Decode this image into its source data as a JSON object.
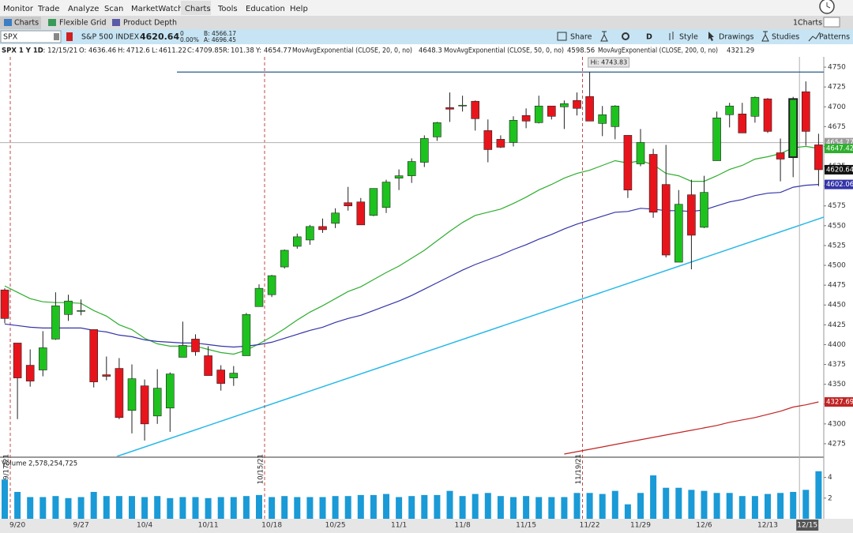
{
  "menu": [
    "Monitor",
    "Trade",
    "Analyze",
    "Scan",
    "MarketWatch",
    "Charts",
    "Tools",
    "Education",
    "Help"
  ],
  "tabs": [
    "Charts",
    "Flexible Grid",
    "Product Depth"
  ],
  "grid_name": "1Charts",
  "symbol": {
    "ticker": "SPX",
    "description": "S&P 500 INDEX",
    "change": "0",
    "change_pct": "0.00%",
    "bid": "B: 4566.17",
    "ask": "A: 4696.45"
  },
  "toolbar": [
    "Share",
    "D",
    "Style",
    "Drawings",
    "Studies",
    "Patterns"
  ],
  "chart_data": {
    "type": "candlestick",
    "title": "SPX 1 Y 1D",
    "date_readout": "D: 12/15/21",
    "ohlc_labels": [
      "O:",
      "H:",
      "L:",
      "C:"
    ],
    "range_label": "R:",
    "range": 101.38,
    "crosshair_label": "Y:",
    "crosshair_price": 4654.77,
    "categories": [
      null,
      "9/20",
      null,
      null,
      null,
      null,
      "9/27",
      null,
      null,
      null,
      null,
      "10/4",
      null,
      null,
      null,
      null,
      "10/11",
      null,
      null,
      null,
      null,
      "10/18",
      null,
      null,
      null,
      null,
      "10/25",
      null,
      null,
      null,
      null,
      "11/1",
      null,
      null,
      null,
      null,
      "11/8",
      null,
      null,
      null,
      null,
      "11/15",
      null,
      null,
      null,
      null,
      "11/22",
      null,
      null,
      null,
      "11/29",
      null,
      null,
      null,
      null,
      "12/6",
      null,
      null,
      null,
      null,
      "12/13",
      null,
      "12/15",
      null,
      null
    ],
    "open": [
      4469,
      4402,
      4374,
      4368,
      4407,
      4438,
      4442,
      4419,
      4362,
      4370,
      4317,
      4348,
      4310,
      4320,
      4384,
      4407,
      4386,
      4368,
      4358,
      4386,
      4448,
      4463,
      4498,
      4524,
      4532,
      4549,
      4553,
      4579,
      4580,
      4563,
      4573,
      4610,
      4613,
      4630,
      4662,
      4699,
      4702,
      4707,
      4670,
      4659,
      4655,
      4689,
      4680,
      4701,
      4700,
      4708,
      4713,
      4679,
      4675,
      4664,
      4628,
      4640,
      4602,
      4504,
      4589,
      4548,
      4632,
      4690,
      4691,
      4688,
      4710,
      4642,
      4636.46,
      4719,
      4652
    ],
    "high": [
      4471,
      4402,
      4394,
      4417,
      4466,
      4463,
      4457,
      4419,
      4385,
      4383,
      4375,
      4356,
      4369,
      4365,
      4429,
      4413,
      4398,
      4374,
      4373,
      4440,
      4476,
      4488,
      4520,
      4540,
      4551,
      4559,
      4572,
      4599,
      4585,
      4597,
      4608,
      4621,
      4635,
      4664,
      4681,
      4718,
      4714,
      4708,
      4684,
      4664,
      4688,
      4698,
      4714,
      4701,
      4708,
      4718,
      4743.83,
      4701,
      4702,
      4664,
      4672,
      4647,
      4652,
      4595,
      4608,
      4613,
      4694,
      4705,
      4705,
      4713,
      4711,
      4660,
      4712.6,
      4732,
      4666
    ],
    "low": [
      4427,
      4306,
      4347,
      4360,
      4406,
      4430,
      4437,
      4346,
      4355,
      4306,
      4288,
      4279,
      4300,
      4290,
      4384,
      4386,
      4361,
      4342,
      4348,
      4386,
      4448,
      4460,
      4496,
      4521,
      4526,
      4541,
      4547,
      4569,
      4551,
      4562,
      4566,
      4595,
      4604,
      4624,
      4657,
      4681,
      4694,
      4670,
      4630,
      4648,
      4650,
      4673,
      4679,
      4684,
      4672,
      4689,
      4682,
      4663,
      4659,
      4585,
      4625,
      4560,
      4510,
      4504,
      4495,
      4547,
      4632,
      4674,
      4667,
      4680,
      4667,
      4606,
      4611.22,
      4651,
      4600
    ],
    "close": [
      4433,
      4358,
      4354,
      4396,
      4449,
      4455,
      4443,
      4353,
      4360,
      4308,
      4357,
      4300,
      4345,
      4363,
      4399,
      4391,
      4361,
      4351,
      4364,
      4438,
      4471,
      4487,
      4519,
      4536,
      4549,
      4545,
      4566,
      4575,
      4551,
      4597,
      4605,
      4613,
      4631,
      4660,
      4680,
      4697,
      4702,
      4685,
      4646,
      4649,
      4683,
      4682,
      4701,
      4688,
      4704,
      4698,
      4682,
      4690,
      4701,
      4595,
      4655,
      4567,
      4513,
      4577,
      4538,
      4592,
      4686,
      4701,
      4667,
      4712,
      4669,
      4634,
      4709.85,
      4669,
      4620.64
    ],
    "up_color": "#1ec21e",
    "down_color": "#e8141c",
    "overlays": [
      {
        "name": "MovAvgExponential (CLOSE, 20, 0, no)",
        "color": "#2fae2f",
        "values": [
          4474,
          4466,
          4458,
          4454,
          4453,
          4453,
          4452,
          4443,
          4436,
          4425,
          4419,
          4408,
          4401,
          4398,
          4398,
          4398,
          4394,
          4390,
          4388,
          4393,
          4401,
          4410,
          4420,
          4431,
          4441,
          4449,
          4458,
          4467,
          4473,
          4482,
          4491,
          4499,
          4509,
          4519,
          4531,
          4543,
          4554,
          4563,
          4567,
          4571,
          4578,
          4586,
          4595,
          4602,
          4610,
          4616,
          4620,
          4626,
          4632,
          4629,
          4632,
          4627,
          4616,
          4613,
          4606,
          4606,
          4613,
          4621,
          4626,
          4634,
          4637,
          4641,
          4648.3,
          4650,
          4647.42
        ]
      },
      {
        "name": "MovAvgExponential (CLOSE, 50, 0, no)",
        "color": "#3434a8",
        "values": [
          4426,
          4424,
          4422,
          4421,
          4421,
          4421,
          4421,
          4418,
          4416,
          4412,
          4410,
          4406,
          4404,
          4403,
          4402,
          4402,
          4400,
          4398,
          4397,
          4398,
          4400,
          4403,
          4408,
          4413,
          4418,
          4422,
          4428,
          4433,
          4437,
          4443,
          4449,
          4455,
          4462,
          4470,
          4478,
          4486,
          4494,
          4501,
          4507,
          4513,
          4520,
          4526,
          4533,
          4539,
          4546,
          4552,
          4557,
          4562,
          4567,
          4568,
          4572,
          4571,
          4569,
          4569,
          4568,
          4570,
          4575,
          4580,
          4583,
          4588,
          4591,
          4592,
          4598.56,
          4601,
          4602.06
        ]
      },
      {
        "name": "MovAvgExponential (CLOSE, 200, 0, no)",
        "color": "#c02424",
        "values": [
          null,
          null,
          null,
          null,
          null,
          null,
          null,
          null,
          null,
          null,
          null,
          null,
          null,
          null,
          null,
          null,
          null,
          null,
          null,
          null,
          null,
          null,
          null,
          null,
          null,
          null,
          null,
          null,
          null,
          null,
          null,
          null,
          null,
          null,
          null,
          null,
          null,
          null,
          null,
          null,
          null,
          null,
          null,
          null,
          4262,
          4265,
          4268,
          4271,
          4274,
          4277,
          4280,
          4283,
          4286,
          4289,
          4292,
          4295,
          4298,
          4302,
          4305,
          4308,
          4312,
          4316,
          4321.29,
          4324,
          4327.69
        ]
      }
    ],
    "high_label": {
      "value": 4743.83,
      "label": "Hi: 4743.83"
    },
    "events": [
      "9/17/21",
      "10/15/21",
      "11/19/21"
    ],
    "ylim": [
      4259,
      4763
    ],
    "yticks": [
      4275,
      4300,
      4325,
      4350,
      4375,
      4400,
      4425,
      4450,
      4475,
      4500,
      4525,
      4550,
      4575,
      4600,
      4625,
      4650,
      4675,
      4700,
      4725,
      4750
    ],
    "volume": {
      "name": "Volume",
      "readout": "2,578,254,725",
      "color": "#1a9ad6",
      "values": [
        3.8,
        2.6,
        2.1,
        2.1,
        2.2,
        2.0,
        2.1,
        2.6,
        2.2,
        2.2,
        2.2,
        2.1,
        2.2,
        2.0,
        2.1,
        2.1,
        2.0,
        2.1,
        2.1,
        2.2,
        2.3,
        2.1,
        2.2,
        2.1,
        2.1,
        2.1,
        2.2,
        2.2,
        2.3,
        2.3,
        2.4,
        2.1,
        2.2,
        2.3,
        2.3,
        2.7,
        2.2,
        2.4,
        2.5,
        2.2,
        2.1,
        2.2,
        2.1,
        2.1,
        2.1,
        2.5,
        2.5,
        2.4,
        2.7,
        1.4,
        2.5,
        4.2,
        3.0,
        3.0,
        2.8,
        2.7,
        2.5,
        2.5,
        2.2,
        2.2,
        2.4,
        2.5,
        2.6,
        2.8,
        4.6
      ],
      "ylim": [
        0,
        5.5
      ],
      "yticks": [
        2,
        4
      ]
    }
  }
}
